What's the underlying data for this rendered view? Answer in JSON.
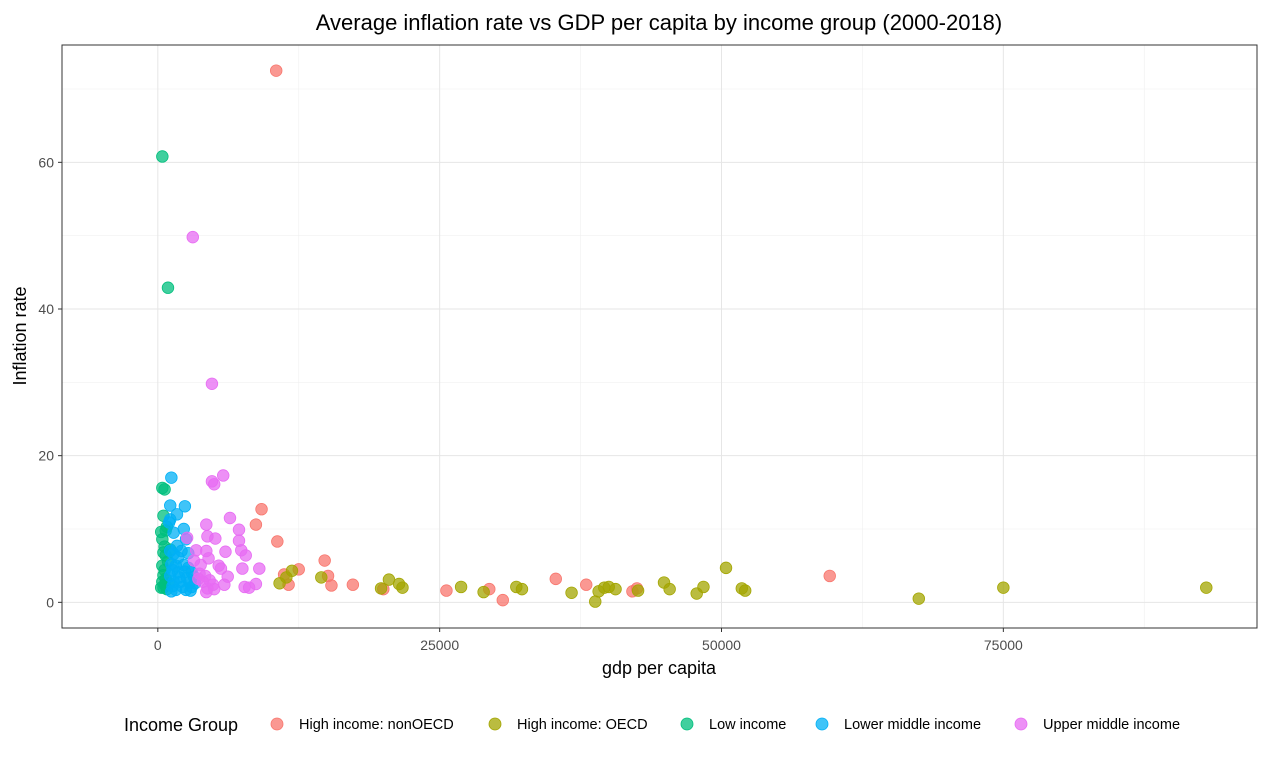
{
  "chart_data": {
    "type": "scatter",
    "title": "Average inflation rate vs GDP per capita by income group (2000-2018)",
    "xlabel": "gdp per capita",
    "ylabel": "Inflation rate",
    "xlim": [
      -8500,
      97500
    ],
    "ylim": [
      -3.5,
      76
    ],
    "x_ticks": [
      0,
      25000,
      50000,
      75000
    ],
    "x_tick_labels": [
      "0",
      "25000",
      "50000",
      "75000"
    ],
    "y_ticks": [
      0,
      20,
      40,
      60
    ],
    "y_tick_labels": [
      "0",
      "20",
      "40",
      "60"
    ],
    "grid": true,
    "legend": {
      "title": "Income Group",
      "position": "bottom"
    },
    "series": [
      {
        "name": "High income: nonOECD",
        "color": "#F8766D",
        "points": [
          [
            10500,
            72.5
          ],
          [
            9200,
            12.7
          ],
          [
            8700,
            10.6
          ],
          [
            10600,
            8.3
          ],
          [
            12500,
            4.5
          ],
          [
            11200,
            3.8
          ],
          [
            11600,
            2.4
          ],
          [
            14800,
            5.7
          ],
          [
            15100,
            3.6
          ],
          [
            15400,
            2.3
          ],
          [
            17300,
            2.4
          ],
          [
            20000,
            1.8
          ],
          [
            25600,
            1.6
          ],
          [
            29400,
            1.8
          ],
          [
            30600,
            0.3
          ],
          [
            35300,
            3.2
          ],
          [
            38000,
            2.4
          ],
          [
            42100,
            1.5
          ],
          [
            42500,
            1.9
          ],
          [
            59600,
            3.6
          ]
        ]
      },
      {
        "name": "High income: OECD",
        "color": "#A3A500",
        "points": [
          [
            10800,
            2.6
          ],
          [
            11400,
            3.4
          ],
          [
            11900,
            4.3
          ],
          [
            14500,
            3.4
          ],
          [
            19800,
            1.9
          ],
          [
            20500,
            3.1
          ],
          [
            21400,
            2.5
          ],
          [
            21700,
            2.0
          ],
          [
            26900,
            2.1
          ],
          [
            28900,
            1.4
          ],
          [
            31800,
            2.1
          ],
          [
            32300,
            1.8
          ],
          [
            36700,
            1.3
          ],
          [
            38800,
            0.1
          ],
          [
            39100,
            1.5
          ],
          [
            39600,
            2.0
          ],
          [
            40000,
            2.1
          ],
          [
            40600,
            1.8
          ],
          [
            42600,
            1.6
          ],
          [
            44900,
            2.7
          ],
          [
            45400,
            1.8
          ],
          [
            47800,
            1.2
          ],
          [
            48400,
            2.1
          ],
          [
            50400,
            4.7
          ],
          [
            51800,
            1.9
          ],
          [
            52100,
            1.6
          ],
          [
            67500,
            0.5
          ],
          [
            75000,
            2.0
          ],
          [
            93000,
            2.0
          ]
        ]
      },
      {
        "name": "Low income",
        "color": "#00BF7D",
        "points": [
          [
            400,
            60.8
          ],
          [
            900,
            42.9
          ],
          [
            400,
            15.6
          ],
          [
            600,
            15.4
          ],
          [
            500,
            11.8
          ],
          [
            300,
            9.6
          ],
          [
            700,
            9.8
          ],
          [
            400,
            8.6
          ],
          [
            600,
            7.6
          ],
          [
            500,
            6.8
          ],
          [
            700,
            6.4
          ],
          [
            400,
            5.0
          ],
          [
            600,
            4.4
          ],
          [
            500,
            3.7
          ],
          [
            700,
            3.2
          ],
          [
            400,
            2.8
          ],
          [
            600,
            2.4
          ],
          [
            500,
            2.0
          ],
          [
            800,
            1.8
          ],
          [
            300,
            2.0
          ],
          [
            900,
            5.6
          ],
          [
            1000,
            2.6
          ],
          [
            1100,
            7.2
          ],
          [
            800,
            10.3
          ]
        ]
      },
      {
        "name": "Lower middle income",
        "color": "#00B0F6",
        "points": [
          [
            1200,
            17.0
          ],
          [
            1100,
            13.2
          ],
          [
            2400,
            13.1
          ],
          [
            1100,
            11.3
          ],
          [
            1700,
            12.0
          ],
          [
            1000,
            10.9
          ],
          [
            2300,
            10.0
          ],
          [
            1400,
            9.5
          ],
          [
            2500,
            8.6
          ],
          [
            1700,
            7.7
          ],
          [
            1100,
            7.0
          ],
          [
            2100,
            7.0
          ],
          [
            1400,
            6.6
          ],
          [
            2700,
            6.7
          ],
          [
            1800,
            6.1
          ],
          [
            1200,
            5.2
          ],
          [
            1600,
            5.0
          ],
          [
            2300,
            5.1
          ],
          [
            2700,
            4.7
          ],
          [
            1300,
            4.4
          ],
          [
            1800,
            4.1
          ],
          [
            2400,
            4.2
          ],
          [
            3000,
            4.1
          ],
          [
            1100,
            3.6
          ],
          [
            1900,
            3.4
          ],
          [
            2600,
            3.3
          ],
          [
            3200,
            3.5
          ],
          [
            1400,
            2.8
          ],
          [
            2000,
            2.8
          ],
          [
            2800,
            2.7
          ],
          [
            3300,
            2.6
          ],
          [
            1300,
            2.2
          ],
          [
            2200,
            2.1
          ],
          [
            3000,
            2.1
          ],
          [
            1600,
            1.7
          ],
          [
            2500,
            1.7
          ],
          [
            2900,
            1.6
          ],
          [
            1200,
            1.5
          ]
        ]
      },
      {
        "name": "Upper middle income",
        "color": "#E76BF3",
        "points": [
          [
            3100,
            49.8
          ],
          [
            4800,
            29.8
          ],
          [
            5800,
            17.3
          ],
          [
            4800,
            16.5
          ],
          [
            5000,
            16.1
          ],
          [
            6400,
            11.5
          ],
          [
            4300,
            10.6
          ],
          [
            7200,
            9.9
          ],
          [
            4400,
            9.0
          ],
          [
            5100,
            8.7
          ],
          [
            7200,
            8.4
          ],
          [
            2600,
            8.8
          ],
          [
            3400,
            7.1
          ],
          [
            4300,
            7.0
          ],
          [
            6000,
            6.9
          ],
          [
            7400,
            7.1
          ],
          [
            7800,
            6.4
          ],
          [
            4500,
            6.0
          ],
          [
            3200,
            5.7
          ],
          [
            5400,
            5.0
          ],
          [
            3800,
            5.1
          ],
          [
            5600,
            4.6
          ],
          [
            7500,
            4.6
          ],
          [
            9000,
            4.6
          ],
          [
            3700,
            3.9
          ],
          [
            4200,
            3.6
          ],
          [
            6200,
            3.5
          ],
          [
            3600,
            3.2
          ],
          [
            4600,
            3.0
          ],
          [
            4000,
            2.8
          ],
          [
            5900,
            2.4
          ],
          [
            8700,
            2.5
          ],
          [
            4900,
            2.4
          ],
          [
            7700,
            2.1
          ],
          [
            8100,
            2.0
          ],
          [
            4400,
            1.9
          ],
          [
            4300,
            1.4
          ],
          [
            5000,
            1.8
          ]
        ]
      }
    ]
  }
}
